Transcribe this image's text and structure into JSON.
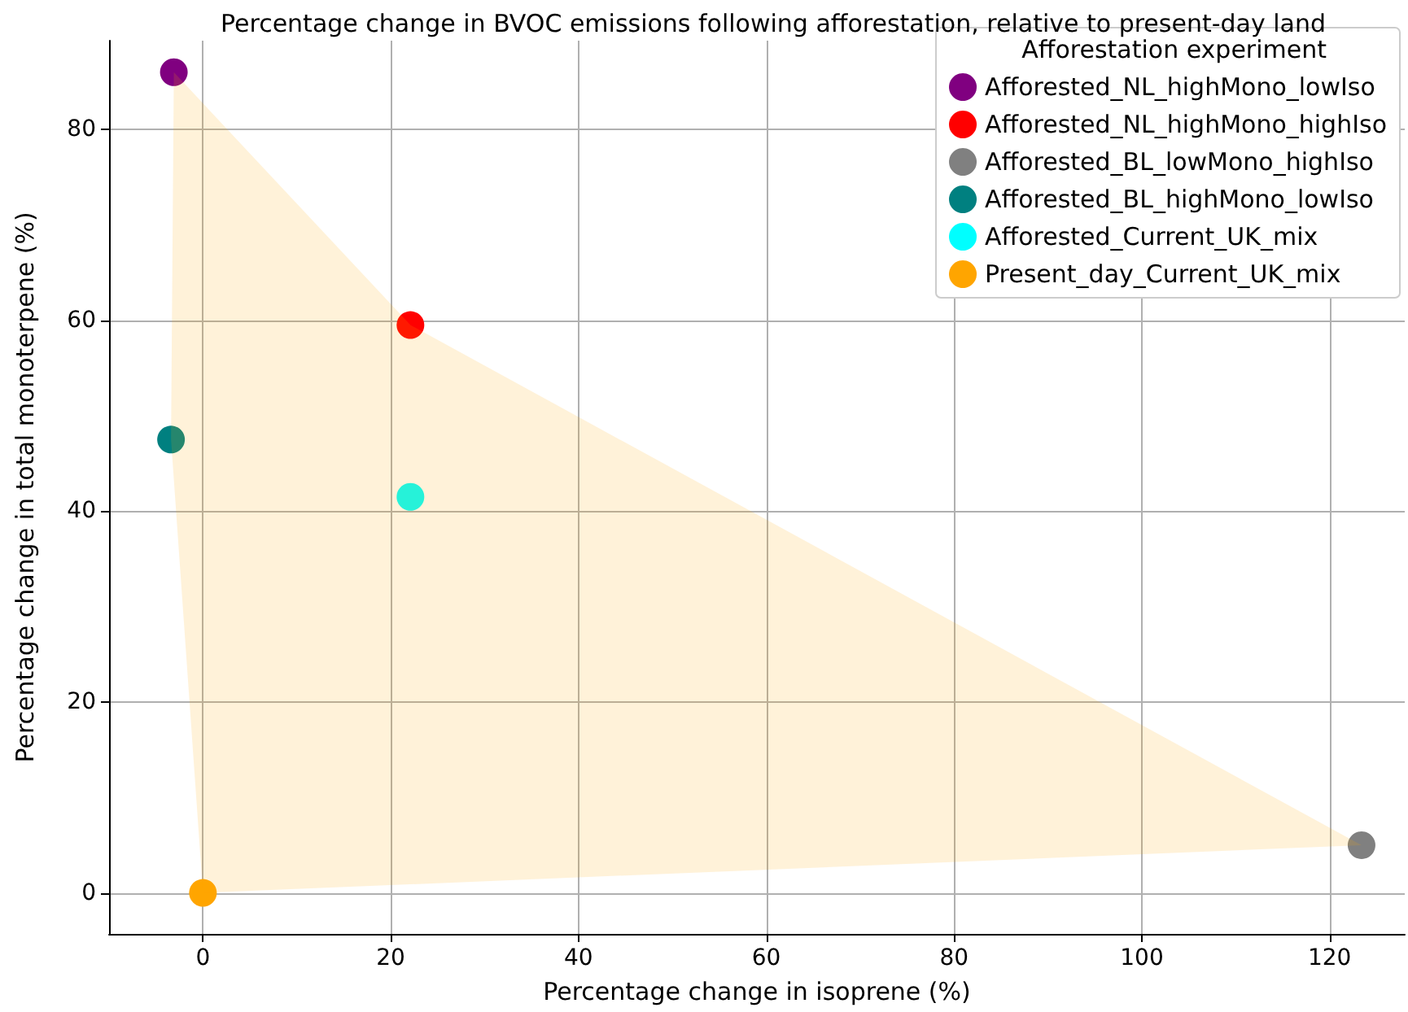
{
  "chart_data": {
    "type": "scatter",
    "title": "Percentage change in BVOC emissions following afforestation, relative to present-day land",
    "xlabel": "Percentage change in isoprene (%)",
    "ylabel": "Percentage change in total monoterpene (%)",
    "legend_title": "Afforestation experiment",
    "series": [
      {
        "type": "area",
        "marker": "none",
        "color": "#ffa500",
        "x": [
          -3.1,
          22.1,
          123.4,
          0,
          -3.4
        ],
        "values": [
          86.0,
          59.5,
          5.0,
          0,
          47.5
        ]
      },
      {
        "name": "Afforested_NL_highMono_lowIso",
        "color": "#800080",
        "x": [
          -3.1
        ],
        "values": [
          86.0
        ]
      },
      {
        "name": "Afforested_NL_highMono_highIso",
        "color": "#ff0000",
        "x": [
          22.1
        ],
        "values": [
          59.5
        ]
      },
      {
        "name": "Afforested_BL_lowMono_highIso",
        "color": "#808080",
        "x": [
          123.4
        ],
        "values": [
          5.0
        ]
      },
      {
        "name": "Afforested_BL_highMono_lowIso",
        "color": "#008080",
        "x": [
          -3.4
        ],
        "values": [
          47.5
        ]
      },
      {
        "name": "Afforested_Current_UK_mix",
        "color": "#00ffff",
        "x": [
          22.1
        ],
        "values": [
          41.5
        ]
      },
      {
        "name": "Present_day_Current_UK_mix",
        "color": "#ffa500",
        "x": [
          0
        ],
        "values": [
          0
        ]
      }
    ],
    "xlim": [
      -10,
      128
    ],
    "ylim": [
      -4.3,
      89.3
    ],
    "xticks": [
      0,
      20,
      40,
      60,
      80,
      100,
      120
    ],
    "yticks": [
      0,
      20,
      40,
      60,
      80
    ],
    "grid": true,
    "legend": "top right",
    "marker": "circle"
  }
}
